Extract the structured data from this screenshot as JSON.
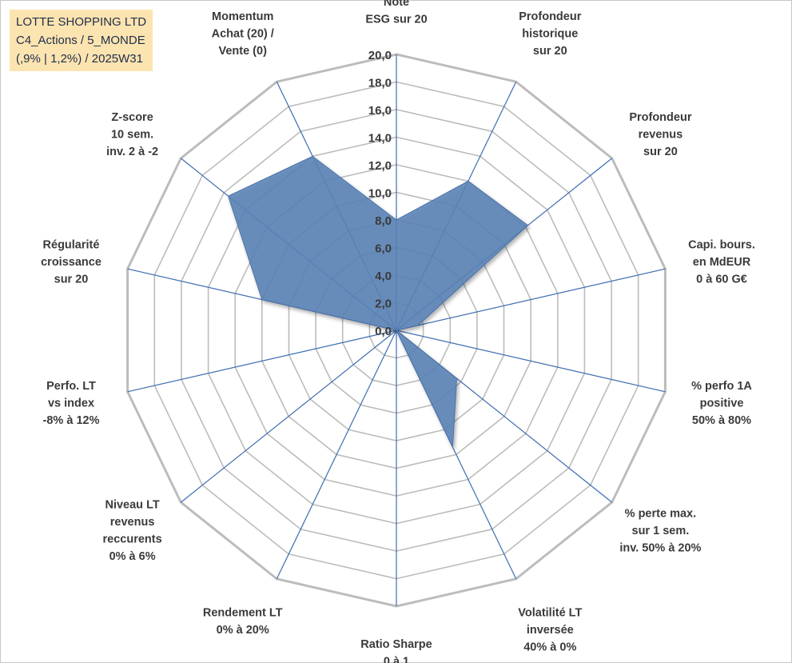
{
  "header": {
    "lines": [
      "LOTTE SHOPPING LTD",
      "C4_Actions / 5_MONDE",
      "(,9% | 1,2%) / 2025W31"
    ]
  },
  "colors": {
    "fill": "#5b83b6",
    "grid": "#bcbcbc",
    "spoke": "#3d6db3",
    "text": "#3a3a3a",
    "title_bg": "#fce4b0"
  },
  "chart_data": {
    "type": "radar",
    "rmin": 0,
    "rmax": 20,
    "grid_step": 2,
    "tick_labels": [
      "0,0",
      "2,0",
      "4,0",
      "6,0",
      "8,0",
      "10,0",
      "12,0",
      "14,0",
      "16,0",
      "18,0",
      "20,0"
    ],
    "axes": [
      {
        "label": [
          "Note",
          "ESG sur 20"
        ],
        "value": 8.0
      },
      {
        "label": [
          "Profondeur",
          "historique",
          "sur 20"
        ],
        "value": 12.0
      },
      {
        "label": [
          "Profondeur",
          "revenus",
          "sur 20"
        ],
        "value": 12.2
      },
      {
        "label": [
          "Capi. bours.",
          "en MdEUR",
          "0 à 60 G€"
        ],
        "value": 1.6
      },
      {
        "label": [
          "% perfo 1A",
          "positive",
          "50% à 80%"
        ],
        "value": 0.0
      },
      {
        "label": [
          "% perte max.",
          "sur 1 sem.",
          "inv. 50% à 20%"
        ],
        "value": 5.6
      },
      {
        "label": [
          "Volatilité LT",
          "inversée",
          "40% à 0%"
        ],
        "value": 9.4
      },
      {
        "label": [
          "Ratio Sharpe",
          "0 à 1"
        ],
        "value": 0.0
      },
      {
        "label": [
          "Rendement LT",
          "0% à 20%"
        ],
        "value": 0.0
      },
      {
        "label": [
          "Niveau LT",
          "revenus",
          "reccurents",
          "0% à 6%"
        ],
        "value": 0.0
      },
      {
        "label": [
          "Perfo. LT",
          "vs index",
          "-8% à 12%"
        ],
        "value": 0.0
      },
      {
        "label": [
          "Régularité",
          "croissance",
          "sur 20"
        ],
        "value": 10.0
      },
      {
        "label": [
          "Z-score",
          "10 sem.",
          "inv. 2 à -2"
        ],
        "value": 15.6
      },
      {
        "label": [
          "Momentum",
          "Achat (20) /",
          "Vente (0)"
        ],
        "value": 14.0
      }
    ]
  }
}
